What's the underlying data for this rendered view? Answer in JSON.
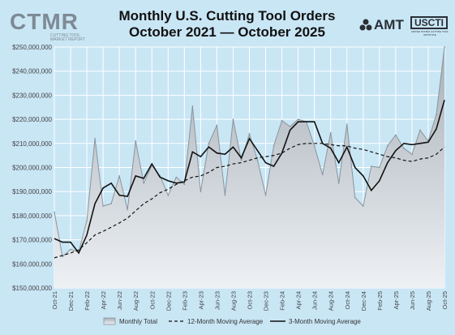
{
  "header": {
    "title_line1": "Monthly U.S. Cutting Tool Orders",
    "title_line2": "October 2021 — October 2025",
    "logo_left": "CTMR",
    "logo_left_sub": "CUTTING TOOL MARKET REPORT",
    "logo_right_amt": "AMT",
    "logo_right_usc": "USCTI",
    "logo_right_usc_sub": "UNITED STATES CUTTING TOOL INSTITUTE"
  },
  "colors": {
    "background": "#c9e6f5",
    "area_fill_top": "#a7b0b8",
    "area_fill_bottom": "#eef1f4",
    "area_line": "#8a949c",
    "ma12": "#111111",
    "ma3": "#111111",
    "grid": "#ffffff"
  },
  "chart_data": {
    "type": "area",
    "title": "Monthly U.S. Cutting Tool Orders",
    "subtitle": "October 2021 — October 2025",
    "xlabel": "",
    "ylabel": "",
    "ylim": [
      150000000,
      250000000
    ],
    "yticks": [
      "$150,000,000",
      "$160,000,000",
      "$170,000,000",
      "$180,000,000",
      "$190,000,000",
      "$200,000,000",
      "$210,000,000",
      "$220,000,000",
      "$230,000,000",
      "$240,000,000",
      "$250,000,000"
    ],
    "ytick_values": [
      150000000,
      160000000,
      170000000,
      180000000,
      190000000,
      200000000,
      210000000,
      220000000,
      230000000,
      240000000,
      250000000
    ],
    "x": [
      "Oct-21",
      "Nov-21",
      "Dec-21",
      "Jan-22",
      "Feb-22",
      "Mar-22",
      "Apr-22",
      "May-22",
      "Jun-22",
      "Jul-22",
      "Aug-22",
      "Sep-22",
      "Oct-22",
      "Nov-22",
      "Dec-22",
      "Jan-23",
      "Feb-23",
      "Mar-23",
      "Apr-23",
      "May-23",
      "Jun-23",
      "Jul-23",
      "Aug-23",
      "Sep-23",
      "Oct-23",
      "Nov-23",
      "Dec-23",
      "Jan-24",
      "Feb-24",
      "Mar-24",
      "Apr-24",
      "May-24",
      "Jun-24",
      "Jul-24",
      "Aug-24",
      "Sep-24",
      "Oct-24",
      "Nov-24",
      "Dec-24",
      "Jan-25",
      "Feb-25",
      "Mar-25",
      "Apr-25",
      "May-25",
      "Jun-25",
      "Jul-25",
      "Aug-25",
      "Sep-25",
      "Oct-25"
    ],
    "xtick_labels": [
      "Oct-21",
      "Dec-21",
      "Feb-22",
      "Apr-22",
      "Jun-22",
      "Aug-22",
      "Oct-22",
      "Dec-22",
      "Feb-23",
      "Apr-23",
      "Jun-23",
      "Aug-23",
      "Oct-23",
      "Dec-23",
      "Feb-24",
      "Apr-24",
      "Jun-24",
      "Aug-24",
      "Oct-24",
      "Dec-24",
      "Feb-25",
      "Apr-25",
      "Jun-25",
      "Aug-25",
      "Oct-25"
    ],
    "grid": true,
    "legend_position": "bottom",
    "series": [
      {
        "name": "Monthly Total",
        "style": "area",
        "values": [
          181500000,
          163000000,
          166000000,
          165000000,
          178000000,
          212000000,
          184000000,
          185000000,
          196500000,
          182500000,
          211000000,
          193500000,
          201000000,
          196500000,
          188500000,
          196000000,
          193000000,
          225500000,
          190000000,
          210000000,
          217500000,
          188500000,
          220000000,
          203000000,
          214000000,
          203000000,
          188500000,
          209000000,
          219500000,
          217000000,
          220000000,
          219000000,
          209000000,
          197000000,
          214500000,
          193500000,
          218000000,
          187500000,
          184000000,
          200500000,
          200000000,
          209000000,
          213500000,
          208000000,
          205500000,
          215500000,
          211000000,
          222000000,
          250000000
        ]
      },
      {
        "name": "12-Month Moving Average",
        "style": "dashed",
        "values": [
          162500000,
          163500000,
          164500000,
          165800000,
          168800000,
          172000000,
          173500000,
          175200000,
          177000000,
          179000000,
          182000000,
          185000000,
          187000000,
          189500000,
          191000000,
          193000000,
          194500000,
          196000000,
          196500000,
          198000000,
          200000000,
          200500000,
          201500000,
          202000000,
          203000000,
          204000000,
          204500000,
          205000000,
          206000000,
          208000000,
          209500000,
          210000000,
          210000000,
          210000000,
          209500000,
          209000000,
          209000000,
          208000000,
          207500000,
          206500000,
          205500000,
          204500000,
          204000000,
          203000000,
          202500000,
          203500000,
          204000000,
          205500000,
          208500000
        ]
      },
      {
        "name": "3-Month Moving Average",
        "style": "solid",
        "values": [
          170500000,
          169000000,
          169000000,
          164500000,
          172000000,
          185000000,
          191500000,
          193500000,
          188500000,
          188000000,
          196500000,
          195500000,
          201500000,
          196000000,
          194500000,
          193500000,
          194000000,
          206500000,
          204500000,
          208500000,
          206000000,
          205500000,
          208500000,
          204000000,
          212000000,
          207000000,
          202000000,
          200500000,
          206000000,
          215500000,
          219000000,
          219000000,
          219000000,
          210000000,
          208000000,
          202000000,
          208500000,
          200000000,
          196500000,
          190500000,
          194500000,
          202000000,
          207000000,
          210000000,
          209500000,
          210000000,
          210500000,
          216000000,
          228000000
        ]
      }
    ]
  }
}
